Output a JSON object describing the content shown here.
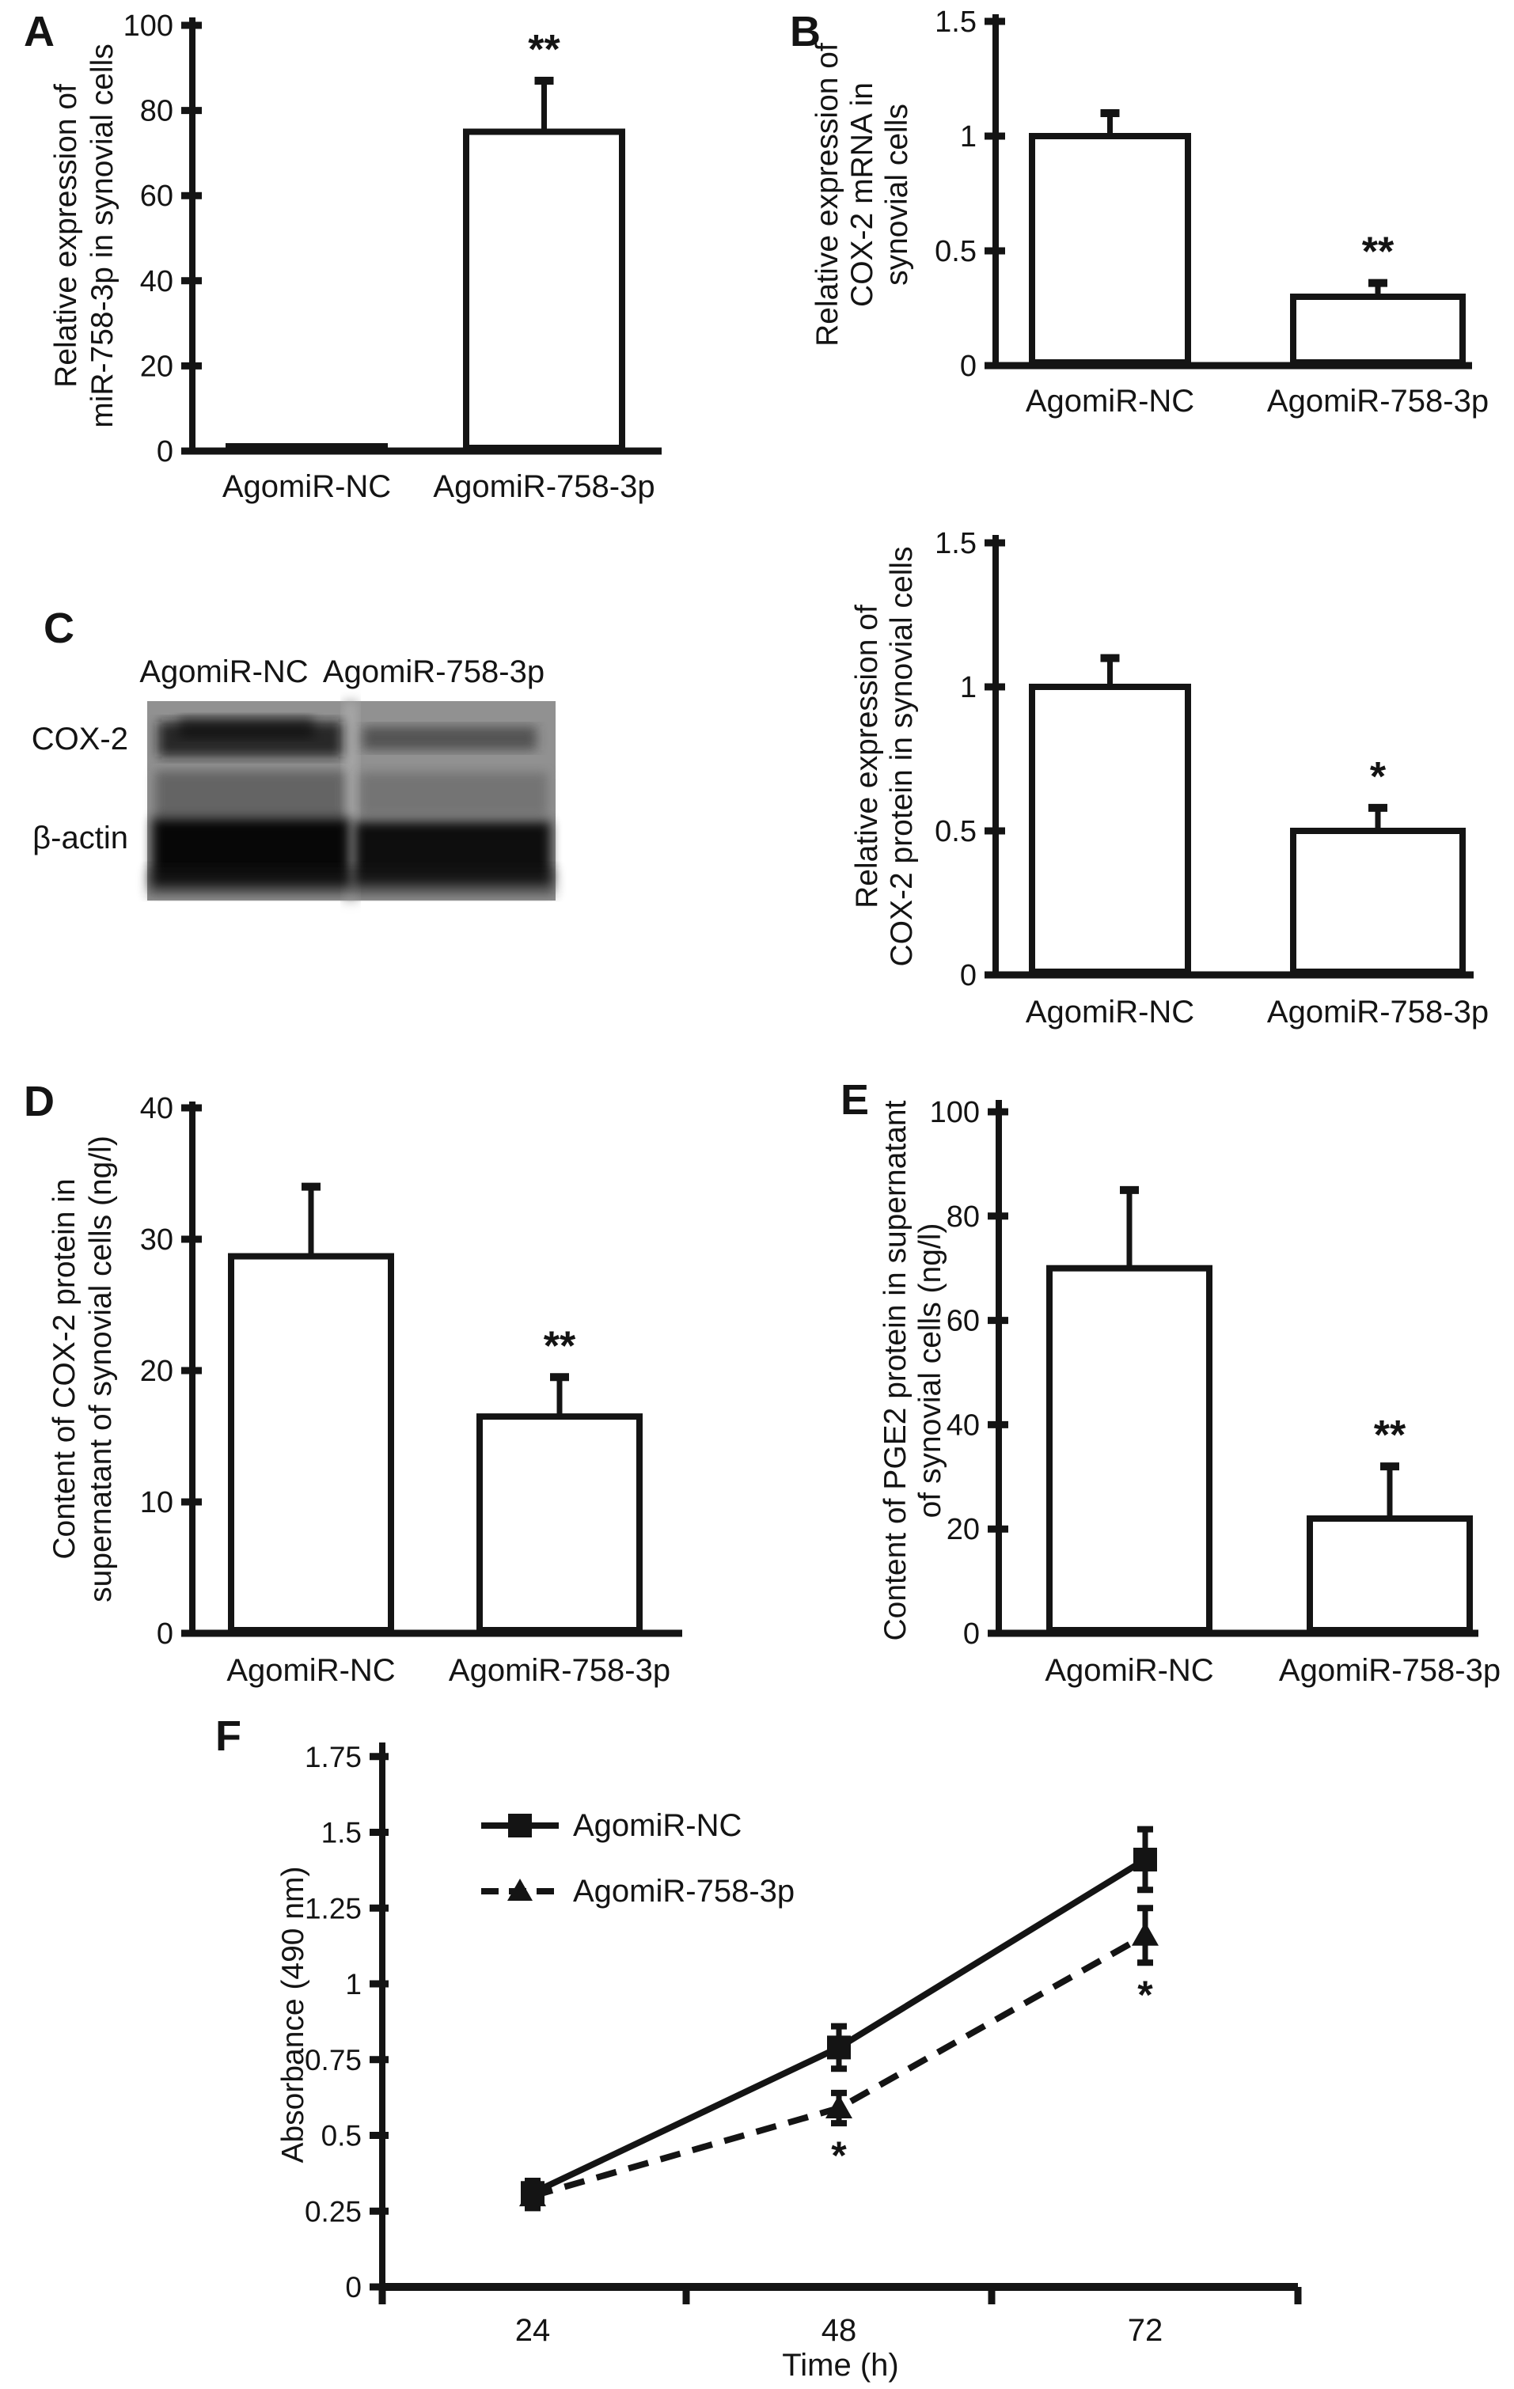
{
  "figure": {
    "background": "#ffffff",
    "ink_color": "#141414",
    "blot_base_color": "#919191"
  },
  "chart_data": [
    {
      "id": "A",
      "type": "bar",
      "panel_label": "A",
      "ylabel_lines": [
        "Relative expression of",
        "miR-758-3p in synovial cells"
      ],
      "categories": [
        "AgomiR-NC",
        "AgomiR-758-3p"
      ],
      "values": [
        1,
        75
      ],
      "errors": [
        0,
        12
      ],
      "significance": [
        null,
        "**"
      ],
      "ylim": [
        0,
        100
      ],
      "yticks": [
        0,
        20,
        40,
        60,
        80,
        100
      ],
      "grid": false
    },
    {
      "id": "B",
      "type": "bar",
      "panel_label": "B",
      "ylabel_lines": [
        "Relative expression of",
        "COX-2 mRNA in",
        "synovial cells"
      ],
      "categories": [
        "AgomiR-NC",
        "AgomiR-758-3p"
      ],
      "values": [
        1.0,
        0.3
      ],
      "errors": [
        0.1,
        0.06
      ],
      "significance": [
        null,
        "**"
      ],
      "ylim": [
        0,
        1.5
      ],
      "yticks": [
        0,
        0.5,
        1,
        1.5
      ],
      "grid": false
    },
    {
      "id": "C-blot",
      "type": "western-blot",
      "panel_label": "C",
      "col_labels": [
        "AgomiR-NC",
        "AgomiR-758-3p"
      ],
      "row_labels": [
        "COX-2",
        "β-actin"
      ]
    },
    {
      "id": "C",
      "type": "bar",
      "panel_label": "",
      "ylabel_lines": [
        "Relative expression of",
        "COX-2 protein in synovial cells"
      ],
      "categories": [
        "AgomiR-NC",
        "AgomiR-758-3p"
      ],
      "values": [
        1.0,
        0.5
      ],
      "errors": [
        0.1,
        0.08
      ],
      "significance": [
        null,
        "*"
      ],
      "ylim": [
        0,
        1.5
      ],
      "yticks": [
        0,
        0.5,
        1,
        1.5
      ],
      "grid": false
    },
    {
      "id": "D",
      "type": "bar",
      "panel_label": "D",
      "ylabel_lines": [
        "Content of COX-2 protein in",
        "supernatant of synovial cells (ng/l)"
      ],
      "categories": [
        "AgomiR-NC",
        "AgomiR-758-3p"
      ],
      "values": [
        28.7,
        16.5
      ],
      "errors": [
        5.3,
        3
      ],
      "significance": [
        null,
        "**"
      ],
      "ylim": [
        0,
        40
      ],
      "yticks": [
        0,
        10,
        20,
        30,
        40
      ],
      "grid": false
    },
    {
      "id": "E",
      "type": "bar",
      "panel_label": "E",
      "ylabel_lines": [
        "Content of PGE2 protein in supernatant",
        "of synovial cells (ng/l)"
      ],
      "categories": [
        "AgomiR-NC",
        "AgomiR-758-3p"
      ],
      "values": [
        70,
        22
      ],
      "errors": [
        15,
        10
      ],
      "significance": [
        null,
        "**"
      ],
      "ylim": [
        0,
        100
      ],
      "yticks": [
        0,
        20,
        40,
        60,
        80,
        100
      ],
      "grid": false
    },
    {
      "id": "F",
      "type": "line",
      "panel_label": "F",
      "ylabel": "Absorbance (490 nm)",
      "xlabel": "Time (h)",
      "x": [
        24,
        48,
        72
      ],
      "series": [
        {
          "name": "AgomiR-NC",
          "marker": "square",
          "line_style": "solid",
          "values": [
            0.31,
            0.79,
            1.41
          ],
          "errors": [
            0.04,
            0.07,
            0.1
          ],
          "significance": [
            null,
            null,
            null
          ]
        },
        {
          "name": "AgomiR-758-3p",
          "marker": "triangle",
          "line_style": "dashed",
          "values": [
            0.3,
            0.59,
            1.16
          ],
          "errors": [
            0.04,
            0.05,
            0.09
          ],
          "significance": [
            null,
            "*",
            "*"
          ]
        }
      ],
      "ylim": [
        0,
        1.75
      ],
      "yticks": [
        0,
        0.25,
        0.5,
        0.75,
        1,
        1.25,
        1.5,
        1.75
      ],
      "legend_position": "upper-left",
      "grid": false
    }
  ]
}
